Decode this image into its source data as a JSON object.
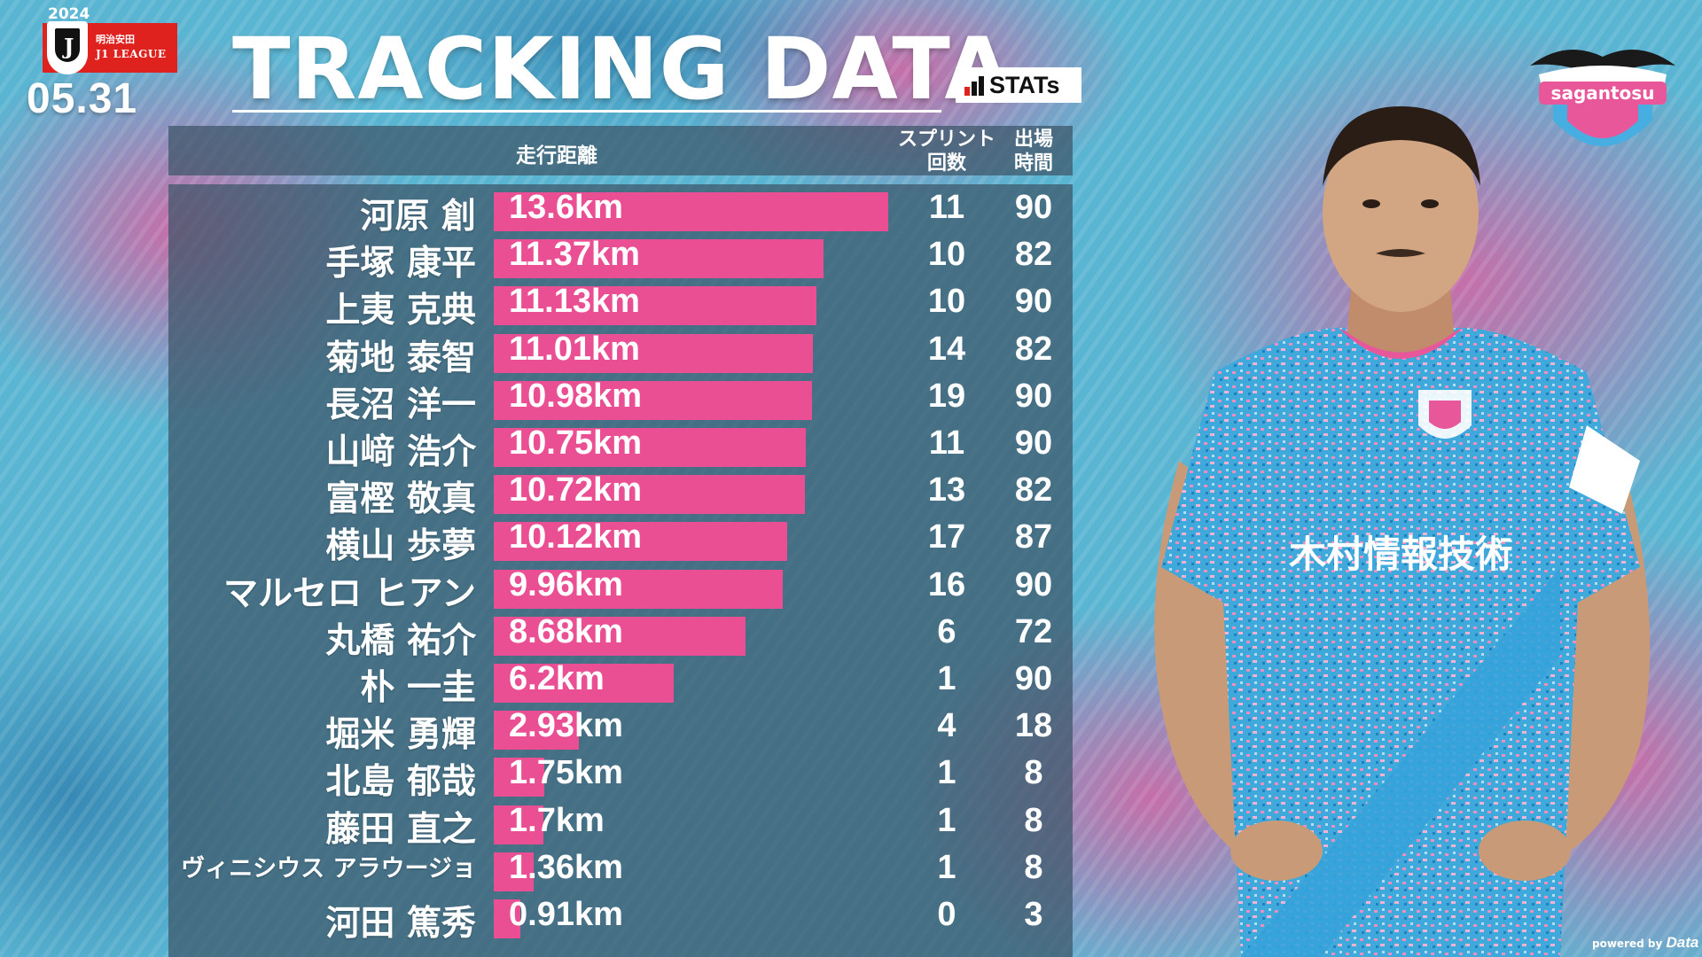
{
  "header": {
    "league_year": "2024",
    "league_line1": "明治安田",
    "league_line2": "J1 LEAGUE",
    "date": "05.31",
    "title": "TRACKING DATA",
    "stats_badge": "STATs"
  },
  "columns": {
    "distance": "走行距離",
    "sprints": "スプリント\n回数",
    "minutes": "出場\n時間"
  },
  "club_name": "sagantosu",
  "jersey_sponsor": "木村情報技術",
  "footer": {
    "powered_prefix": "powered by",
    "powered_brand": "Data Stadium"
  },
  "colors": {
    "bar": "#ea4f93",
    "panel": "#3c5466",
    "background": "#4aa8c8",
    "accent_pink": "#e9579b"
  },
  "chart_data": {
    "type": "bar",
    "orientation": "horizontal",
    "unit": "km",
    "categories": [
      "河原 創",
      "手塚 康平",
      "上夷 克典",
      "菊地 泰智",
      "長沼 洋一",
      "山﨑 浩介",
      "富樫 敬真",
      "横山 歩夢",
      "マルセロ ヒアン",
      "丸橋 祐介",
      "朴 一圭",
      "堀米 勇輝",
      "北島 郁哉",
      "藤田 直之",
      "ヴィニシウス アラウージョ",
      "河田 篤秀"
    ],
    "values": [
      13.6,
      11.37,
      11.13,
      11.01,
      10.98,
      10.75,
      10.72,
      10.12,
      9.96,
      8.68,
      6.2,
      2.93,
      1.75,
      1.7,
      1.36,
      0.91
    ],
    "value_labels": [
      "13.6km",
      "11.37km",
      "11.13km",
      "11.01km",
      "10.98km",
      "10.75km",
      "10.72km",
      "10.12km",
      "9.96km",
      "8.68km",
      "6.2km",
      "2.93km",
      "1.75km",
      "1.7km",
      "1.36km",
      "0.91km"
    ],
    "sprints": [
      11,
      10,
      10,
      14,
      19,
      11,
      13,
      17,
      16,
      6,
      1,
      4,
      1,
      1,
      1,
      0
    ],
    "minutes": [
      90,
      82,
      90,
      82,
      90,
      90,
      82,
      87,
      90,
      72,
      90,
      18,
      8,
      8,
      8,
      3
    ],
    "xlim": [
      0,
      13.6
    ],
    "grid": false,
    "legend": "none"
  }
}
